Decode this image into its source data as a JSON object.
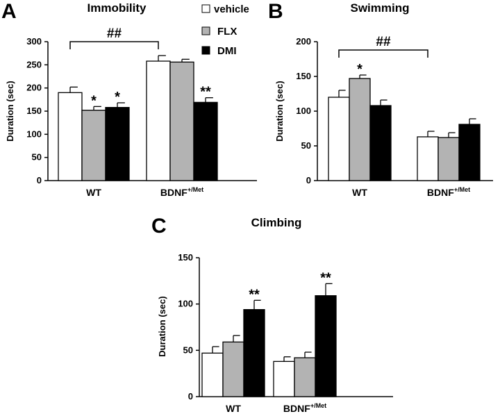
{
  "colors": {
    "vehicle": "#ffffff",
    "FLX": "#b3b3b3",
    "DMI": "#000000"
  },
  "legend": [
    {
      "key": "vehicle",
      "label": "vehicle"
    },
    {
      "key": "FLX",
      "label": "FLX"
    },
    {
      "key": "DMI",
      "label": "DMI"
    }
  ],
  "chart_data": [
    {
      "panel": "A",
      "type": "bar",
      "title": "Immobility",
      "ylabel": "Duration (sec)",
      "ylim": [
        0,
        300
      ],
      "yticks": [
        0,
        50,
        100,
        150,
        200,
        250,
        300
      ],
      "categories": [
        "WT",
        "BDNF+/Met"
      ],
      "category_labels": [
        {
          "base": "WT",
          "sup": ""
        },
        {
          "base": "BDNF",
          "sup": "+/Met"
        }
      ],
      "series": [
        {
          "name": "vehicle",
          "values": [
            190,
            258
          ],
          "errors": [
            12,
            12
          ],
          "annotations": [
            "",
            ""
          ]
        },
        {
          "name": "FLX",
          "values": [
            152,
            256
          ],
          "errors": [
            8,
            6
          ],
          "annotations": [
            "*",
            ""
          ]
        },
        {
          "name": "DMI",
          "values": [
            158,
            169
          ],
          "errors": [
            10,
            10
          ],
          "annotations": [
            "*",
            "**"
          ]
        }
      ],
      "bracket": {
        "from": "WT",
        "to": "BDNF+/Met",
        "label": "##"
      },
      "legend_position": "top-right"
    },
    {
      "panel": "B",
      "type": "bar",
      "title": "Swimming",
      "ylabel": "Duration (sec)",
      "ylim": [
        0,
        200
      ],
      "yticks": [
        0,
        50,
        100,
        150,
        200
      ],
      "categories": [
        "WT",
        "BDNF+/Met"
      ],
      "category_labels": [
        {
          "base": "WT",
          "sup": ""
        },
        {
          "base": "BDNF",
          "sup": "+/Met"
        }
      ],
      "series": [
        {
          "name": "vehicle",
          "values": [
            120,
            63
          ],
          "errors": [
            10,
            8
          ],
          "annotations": [
            "",
            ""
          ]
        },
        {
          "name": "FLX",
          "values": [
            147,
            62
          ],
          "errors": [
            5,
            7
          ],
          "annotations": [
            "*",
            ""
          ]
        },
        {
          "name": "DMI",
          "values": [
            108,
            81
          ],
          "errors": [
            8,
            8
          ],
          "annotations": [
            "",
            ""
          ]
        }
      ],
      "bracket": {
        "from": "WT",
        "to": "BDNF+/Met",
        "label": "##"
      }
    },
    {
      "panel": "C",
      "type": "bar",
      "title": "Climbing",
      "ylabel": "Duration (sec)",
      "ylim": [
        0,
        150
      ],
      "yticks": [
        0,
        50,
        100,
        150
      ],
      "categories": [
        "WT",
        "BDNF+/Met"
      ],
      "category_labels": [
        {
          "base": "WT",
          "sup": ""
        },
        {
          "base": "BDNF",
          "sup": "+/Met"
        }
      ],
      "series": [
        {
          "name": "vehicle",
          "values": [
            47,
            38
          ],
          "errors": [
            7,
            5
          ],
          "annotations": [
            "",
            ""
          ]
        },
        {
          "name": "FLX",
          "values": [
            59,
            42
          ],
          "errors": [
            7,
            6
          ],
          "annotations": [
            "",
            ""
          ]
        },
        {
          "name": "DMI",
          "values": [
            94,
            109
          ],
          "errors": [
            10,
            13
          ],
          "annotations": [
            "**",
            "**"
          ]
        }
      ]
    }
  ]
}
